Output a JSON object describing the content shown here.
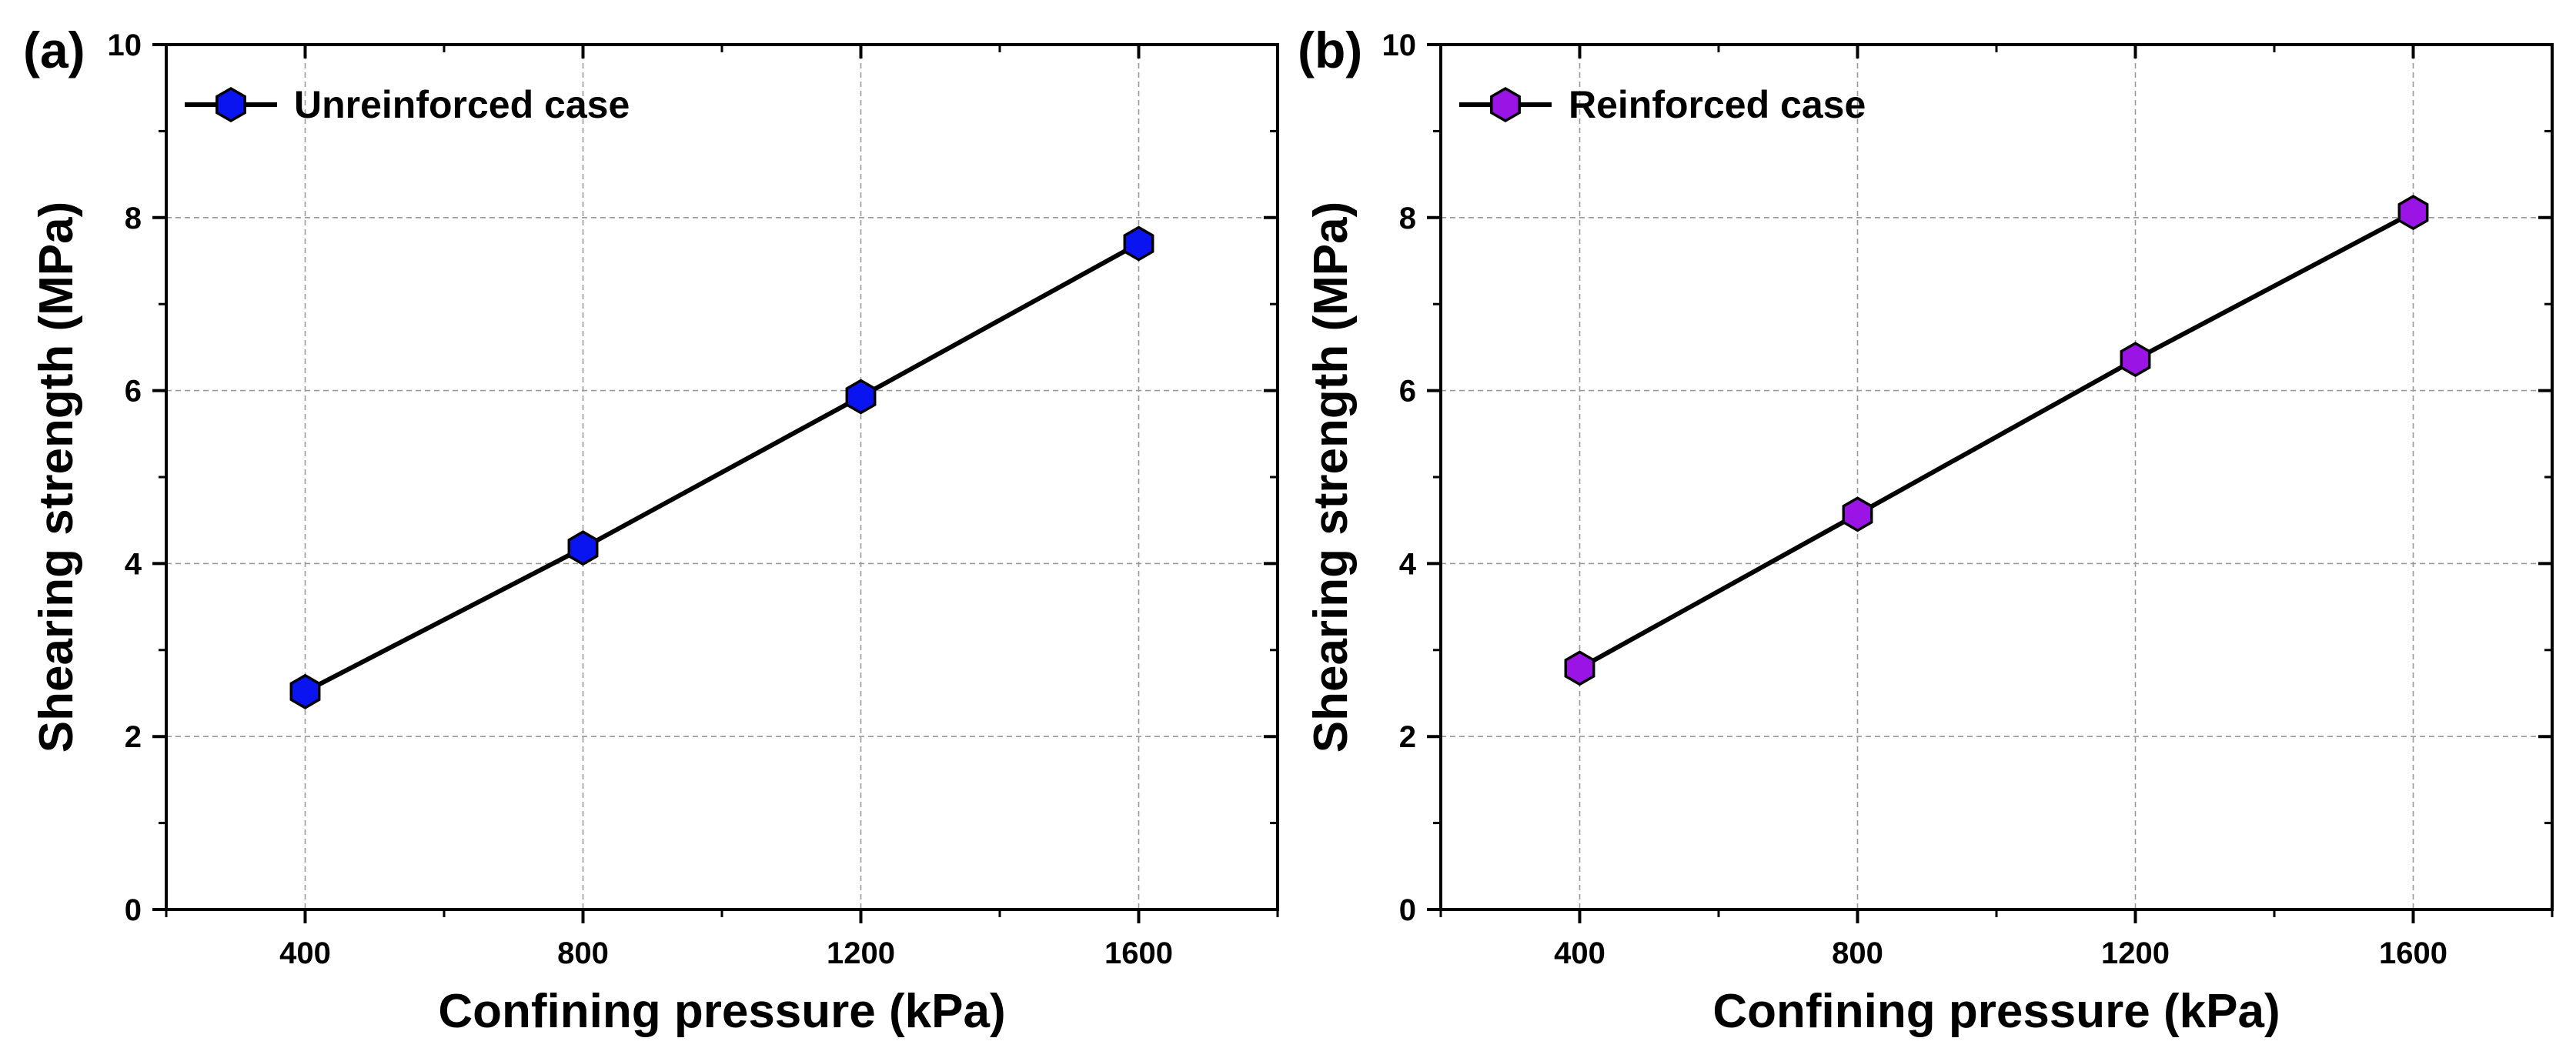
{
  "chart_data": [
    {
      "type": "line",
      "panel_label": "(a)",
      "title": "",
      "xlabel": "Confining pressure (kPa)",
      "ylabel": "Shearing strength (MPa)",
      "xlim": [
        200,
        1800
      ],
      "ylim": [
        0,
        10
      ],
      "xticks": [
        400,
        800,
        1200,
        1600
      ],
      "xticks_minor": [
        200,
        600,
        1000,
        1400,
        1800
      ],
      "yticks": [
        0,
        2,
        4,
        6,
        8,
        10
      ],
      "grid": true,
      "legend_position": "top-left",
      "series": [
        {
          "name": "Unreinforced case",
          "marker": "hexagon",
          "marker_color": "#0a14f0",
          "line_color": "#000000",
          "x": [
            400,
            800,
            1200,
            1600
          ],
          "y": [
            2.52,
            4.18,
            5.93,
            7.7
          ]
        }
      ]
    },
    {
      "type": "line",
      "panel_label": "(b)",
      "title": "",
      "xlabel": "Confining pressure (kPa)",
      "ylabel": "Shearing strength (MPa)",
      "xlim": [
        200,
        1800
      ],
      "ylim": [
        0,
        10
      ],
      "xticks": [
        400,
        800,
        1200,
        1600
      ],
      "xticks_minor": [
        200,
        600,
        1000,
        1400,
        1800
      ],
      "yticks": [
        0,
        2,
        4,
        6,
        8,
        10
      ],
      "grid": true,
      "legend_position": "top-left",
      "series": [
        {
          "name": "Reinforced case",
          "marker": "hexagon",
          "marker_color": "#9b14e6",
          "line_color": "#000000",
          "x": [
            400,
            800,
            1200,
            1600
          ],
          "y": [
            2.79,
            4.57,
            6.36,
            8.06
          ]
        }
      ]
    }
  ]
}
